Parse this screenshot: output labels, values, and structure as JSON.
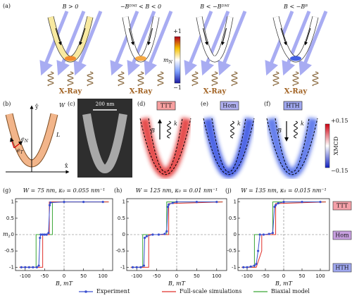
{
  "panel_a": {
    "label": "(a)",
    "panels": [
      {
        "condition": "B > 0",
        "xray": "X-Ray"
      },
      {
        "condition": "−Bᴰᴹᴵ < B < 0",
        "xray": "X-Ray"
      },
      {
        "condition": "B < −Bᴰᴹᴵ",
        "xray": "X-Ray"
      },
      {
        "condition": "B < −Bᴮ",
        "xray": "X-Ray"
      }
    ],
    "colorbar": {
      "max": "+1",
      "min": "−1",
      "label": {
        "base": "m",
        "sub": "N"
      }
    }
  },
  "panel_b": {
    "label": "(b)",
    "y_axis": "ŷ",
    "x_axis": "x̂",
    "width": "W",
    "length": "L",
    "e_N": {
      "base": "e",
      "sub": "N"
    },
    "e_T": {
      "base": "e",
      "sub": "T"
    }
  },
  "panel_c": {
    "label": "(c)",
    "scale": "200 nm"
  },
  "panels_def": [
    {
      "label": "(d)",
      "state": "TTT",
      "field": "B",
      "wave": "k"
    },
    {
      "label": "(e)",
      "state": "Hom",
      "wave": "k"
    },
    {
      "label": "(f)",
      "state": "HTH",
      "field": "B",
      "wave": "k"
    }
  ],
  "colorbar_xmcd": {
    "max": "+0.15",
    "min": "−0.15",
    "label": "XMCD"
  },
  "plots": [
    {
      "label": "(g)",
      "title": "W = 75 nm, κ₀ = 0.055 nm⁻¹",
      "xlabel": "B, mT",
      "ylabel": {
        "base": "m",
        "sub": "z"
      },
      "xlim": [
        -125,
        125
      ],
      "ylim": [
        -1.1,
        1.1
      ],
      "xticks": [
        -100,
        -50,
        0,
        50,
        100
      ],
      "yticks": [
        1,
        0.5,
        0,
        -0.5,
        -1
      ],
      "series": [
        {
          "x": [
            -110,
            -100,
            -90,
            -80,
            -70,
            -65,
            -62,
            -60,
            -55,
            -50,
            -45,
            -40,
            -37,
            -35,
            0,
            50,
            100
          ],
          "values": [
            -1,
            -1,
            -1,
            -1,
            -1,
            -0.95,
            -0.1,
            0,
            0,
            0,
            0,
            0.05,
            0.9,
            0.98,
            1,
            1,
            1
          ]
        },
        {
          "x": [
            -115,
            -55,
            -55,
            -38,
            -38,
            115
          ],
          "values": [
            -1,
            -1,
            0,
            0,
            1,
            1
          ]
        },
        {
          "x": [
            -115,
            -72,
            -72,
            -30,
            -30,
            115
          ],
          "values": [
            -1,
            -1,
            0,
            0,
            1,
            1
          ]
        }
      ]
    },
    {
      "label": "(h)",
      "title": "W = 125 nm, κ₀ = 0.01 nm⁻¹",
      "xlabel": "B, mT",
      "xlim": [
        -125,
        125
      ],
      "ylim": [
        -1.1,
        1.1
      ],
      "xticks": [
        -100,
        -50,
        0,
        50,
        100
      ],
      "yticks": [
        1,
        0.5,
        0,
        -0.5,
        -1
      ],
      "series": [
        {
          "x": [
            -110,
            -100,
            -90,
            -82,
            -80,
            -75,
            -60,
            -45,
            -30,
            -25,
            -22,
            -20,
            -10,
            0,
            50,
            100
          ],
          "values": [
            -1,
            -1,
            -1,
            -0.95,
            -0.1,
            -0.05,
            0,
            0,
            0.02,
            0.1,
            0.85,
            0.92,
            0.97,
            1,
            1,
            1
          ]
        },
        {
          "x": [
            -115,
            -70,
            -70,
            -20,
            -20,
            115
          ],
          "values": [
            -1,
            -1,
            0,
            0,
            0.95,
            1
          ]
        },
        {
          "x": [
            -115,
            -85,
            -85,
            -25,
            -25,
            115
          ],
          "values": [
            -1,
            -1,
            0,
            0,
            1,
            1
          ]
        }
      ]
    },
    {
      "label": "(j)",
      "title": "W = 135 nm, κ₀ = 0.015 nm⁻¹",
      "xlabel": "B, mT",
      "xlim": [
        -125,
        125
      ],
      "ylim": [
        -1.1,
        1.1
      ],
      "xticks": [
        -100,
        -50,
        0,
        50,
        100
      ],
      "yticks": [
        1,
        0.5,
        0,
        -0.5,
        -1
      ],
      "series": [
        {
          "x": [
            -110,
            -100,
            -90,
            -80,
            -75,
            -70,
            -65,
            -55,
            -40,
            -30,
            -25,
            -22,
            -15,
            0,
            50,
            100
          ],
          "values": [
            -1,
            -1,
            -0.98,
            -0.95,
            -0.9,
            -0.5,
            0,
            0,
            0.02,
            0.05,
            0.85,
            0.9,
            0.96,
            1,
            1,
            1
          ]
        },
        {
          "x": [
            -115,
            -75,
            -60,
            -60,
            -22,
            -22,
            115
          ],
          "values": [
            -1,
            -1,
            -0.5,
            0,
            0,
            0.95,
            1
          ]
        },
        {
          "x": [
            -115,
            -80,
            -80,
            -30,
            -30,
            115
          ],
          "values": [
            -1,
            -1,
            0,
            0,
            1,
            1
          ]
        }
      ]
    }
  ],
  "side_labels": [
    "TTT",
    "Hom",
    "HTH"
  ],
  "legend": [
    {
      "name": "Experiment",
      "color": "#3a4fd0"
    },
    {
      "name": "Full-scale simulations",
      "color": "#e0302a"
    },
    {
      "name": "Biaxial model",
      "color": "#3aa636"
    }
  ]
}
